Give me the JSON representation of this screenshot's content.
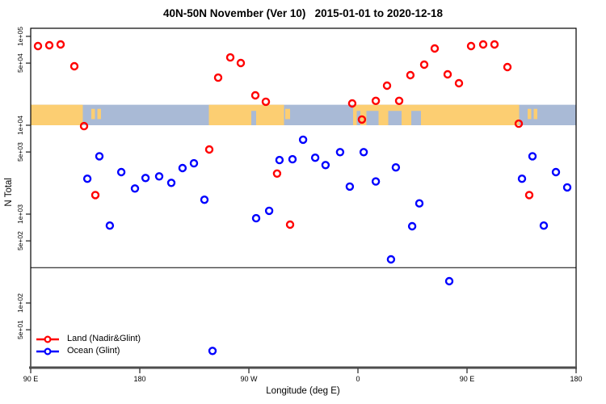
{
  "title": "40N-50N November (Ver 10)   2015-01-01 to 2020-12-18",
  "legend": {
    "items": [
      {
        "label": "Land (Nadir&Glint)",
        "color": "#ff0000"
      },
      {
        "label": "Ocean (Glint)",
        "color": "#0000ff"
      }
    ]
  },
  "chart_data": {
    "type": "scatter",
    "title": "40N-50N November (Ver 10)   2015-01-01 to 2020-12-18",
    "xlabel": "Longitude (deg E)",
    "ylabel": "N Total",
    "x_axis": {
      "note": "axis starts at 90E and runs eastward 450 degrees, wrapping through 180, 90W, 0, 90E to 180",
      "range_deg_from_left": [
        0,
        450
      ],
      "ticks_deg": [
        0,
        90,
        180,
        270,
        360,
        450
      ],
      "tick_labels": [
        "90 E",
        "180",
        "90 W",
        "0",
        "90 E",
        "180"
      ]
    },
    "y_axis": {
      "scale": "log10",
      "tick_values": [
        100000,
        50000,
        10000,
        5000,
        1000,
        500,
        100,
        50
      ],
      "tick_labels": [
        "1e+05",
        "5e+04",
        "1e+04",
        "5e+03",
        "1e+03",
        "5e+02",
        "1e+02",
        "5e+01"
      ],
      "range": [
        20,
        125000
      ]
    },
    "grid": "off",
    "legend_position": "bottom-left-inside",
    "threshold_line": {
      "value": 250,
      "color": "#000000"
    },
    "map_band": {
      "description": "40N-50N world-map strip drawn across plot between N=10000 and N=17000",
      "value_range": [
        10000,
        17000
      ],
      "land_color": "#fcce72",
      "ocean_color": "#a9bad6",
      "land_segments_deg": [
        [
          0,
          43
        ],
        [
          147,
          209
        ],
        [
          266,
          403
        ]
      ],
      "water_patches_deg": [
        [
          182,
          186
        ],
        [
          269,
          272
        ],
        [
          277,
          287
        ],
        [
          295,
          306
        ],
        [
          314,
          322
        ]
      ],
      "island_patches_deg": [
        [
          50,
          53
        ],
        [
          55,
          58
        ],
        [
          210,
          214
        ],
        [
          410,
          413
        ],
        [
          415,
          418
        ]
      ]
    },
    "series": [
      {
        "name": "Land (Nadir&Glint)",
        "color": "#ff0000",
        "marker": "open-circle",
        "points_deg_n": [
          [
            6,
            77800
          ],
          [
            15.3,
            79400
          ],
          [
            24.7,
            81100
          ],
          [
            36,
            46100
          ],
          [
            44,
            9770
          ],
          [
            53.3,
            1640
          ],
          [
            147.3,
            5340
          ],
          [
            154.7,
            34300
          ],
          [
            164.7,
            57900
          ],
          [
            173.3,
            50100
          ],
          [
            185.3,
            21700
          ],
          [
            194,
            18400
          ],
          [
            203.3,
            2860
          ],
          [
            214,
            762
          ],
          [
            265.3,
            17600
          ],
          [
            273.3,
            11600
          ],
          [
            284.7,
            18800
          ],
          [
            294,
            27900
          ],
          [
            304,
            18800
          ],
          [
            313.3,
            36600
          ],
          [
            324.7,
            48100
          ],
          [
            333.3,
            73000
          ],
          [
            344,
            37400
          ],
          [
            353.3,
            29700
          ],
          [
            363.3,
            77800
          ],
          [
            373.3,
            81100
          ],
          [
            382.7,
            81100
          ],
          [
            393.3,
            45100
          ],
          [
            402.7,
            10400
          ],
          [
            411.3,
            1640
          ]
        ]
      },
      {
        "name": "Ocean (Glint)",
        "color": "#0000ff",
        "marker": "open-circle",
        "points_deg_n": [
          [
            46.7,
            2500
          ],
          [
            56.7,
            4480
          ],
          [
            65.3,
            743
          ],
          [
            74.7,
            2970
          ],
          [
            86,
            1940
          ],
          [
            94.7,
            2550
          ],
          [
            106,
            2660
          ],
          [
            116,
            2250
          ],
          [
            125.3,
            3300
          ],
          [
            134.7,
            3730
          ],
          [
            143.3,
            1450
          ],
          [
            150,
            28.9
          ],
          [
            186,
            899
          ],
          [
            196.7,
            1090
          ],
          [
            205.3,
            4060
          ],
          [
            216,
            4140
          ],
          [
            224.7,
            6870
          ],
          [
            234.7,
            4310
          ],
          [
            243.3,
            3560
          ],
          [
            255.3,
            4980
          ],
          [
            263.3,
            2040
          ],
          [
            274.7,
            4980
          ],
          [
            284.7,
            2330
          ],
          [
            297.3,
            310
          ],
          [
            301.3,
            3350
          ],
          [
            314.7,
            730
          ],
          [
            320.7,
            1320
          ],
          [
            345.3,
            176
          ],
          [
            405.3,
            2500
          ],
          [
            414,
            4480
          ],
          [
            423.3,
            743
          ],
          [
            433.3,
            2970
          ],
          [
            442.7,
            2000
          ]
        ]
      }
    ]
  }
}
